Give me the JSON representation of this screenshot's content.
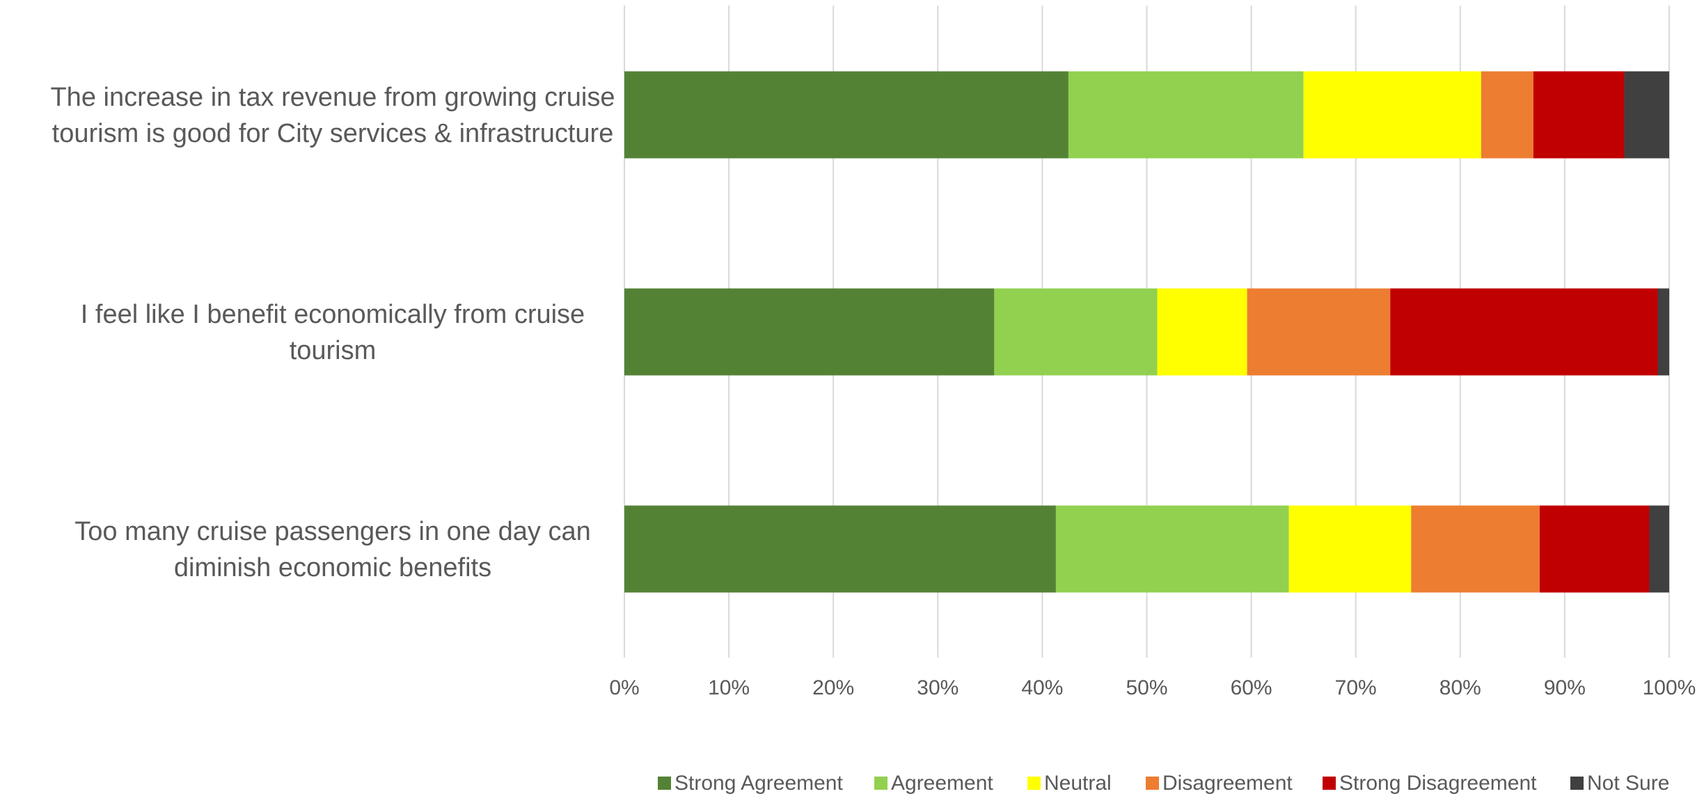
{
  "chart_data": {
    "type": "bar",
    "orientation": "horizontal",
    "stacked": "percent",
    "title": "",
    "xlabel": "",
    "ylabel": "",
    "xlim": [
      0,
      100
    ],
    "x_ticks": [
      "0%",
      "10%",
      "20%",
      "30%",
      "40%",
      "50%",
      "60%",
      "70%",
      "80%",
      "90%",
      "100%"
    ],
    "grid": "vertical",
    "legend_position": "bottom",
    "categories": [
      "The increase in tax revenue from growing cruise tourism is good for City services & infrastructure",
      "I feel like I benefit economically from cruise tourism",
      "Too many cruise passengers in one day can diminish economic benefits"
    ],
    "category_lines": [
      [
        "The increase in tax revenue from growing cruise",
        "tourism is good for City services & infrastructure"
      ],
      [
        "I feel like I benefit economically from cruise",
        "tourism"
      ],
      [
        "Too many cruise passengers in one day can",
        "diminish economic benefits"
      ]
    ],
    "series": [
      {
        "name": "Strong Agreement",
        "color": "#548235",
        "values": [
          42.5,
          35.4,
          41.3
        ]
      },
      {
        "name": "Agreement",
        "color": "#92d050",
        "values": [
          22.5,
          15.6,
          22.3
        ]
      },
      {
        "name": "Neutral",
        "color": "#ffff00",
        "values": [
          17.0,
          8.6,
          11.7
        ]
      },
      {
        "name": "Disagreement",
        "color": "#ed7d31",
        "values": [
          5.0,
          13.7,
          12.3
        ]
      },
      {
        "name": "Strong Disagreement",
        "color": "#c00000",
        "values": [
          8.7,
          25.6,
          10.5
        ]
      },
      {
        "name": "Not Sure",
        "color": "#404040",
        "values": [
          4.3,
          1.1,
          1.9
        ]
      }
    ]
  }
}
